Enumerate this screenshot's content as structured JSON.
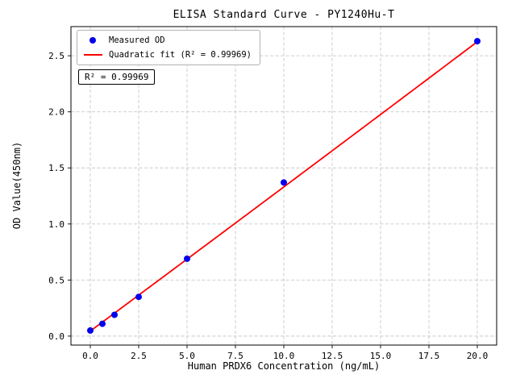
{
  "chart_data": {
    "type": "scatter",
    "title": "ELISA Standard Curve - PY1240Hu-T",
    "xlabel": "Human PRDX6 Concentration (ng/mL)",
    "ylabel": "OD Value(450nm)",
    "xlim": [
      -1.0,
      21.0
    ],
    "ylim": [
      -0.08,
      2.76
    ],
    "grid": true,
    "x_ticks": [
      {
        "value": 0,
        "label": "0.0"
      },
      {
        "value": 2.5,
        "label": "2.5"
      },
      {
        "value": 5,
        "label": "5.0"
      },
      {
        "value": 7.5,
        "label": "7.5"
      },
      {
        "value": 10,
        "label": "10.0"
      },
      {
        "value": 12.5,
        "label": "12.5"
      },
      {
        "value": 15,
        "label": "15.0"
      },
      {
        "value": 17.5,
        "label": "17.5"
      },
      {
        "value": 20,
        "label": "20.0"
      }
    ],
    "y_ticks": [
      {
        "value": 0.0,
        "label": "0.0"
      },
      {
        "value": 0.5,
        "label": "0.5"
      },
      {
        "value": 1.0,
        "label": "1.0"
      },
      {
        "value": 1.5,
        "label": "1.5"
      },
      {
        "value": 2.0,
        "label": "2.0"
      },
      {
        "value": 2.5,
        "label": "2.5"
      }
    ],
    "series": [
      {
        "name": "Measured OD",
        "type": "scatter",
        "color": "#0000ee",
        "points": [
          {
            "x": 0,
            "y": 0.05
          },
          {
            "x": 0.625,
            "y": 0.11
          },
          {
            "x": 1.25,
            "y": 0.19
          },
          {
            "x": 2.5,
            "y": 0.35
          },
          {
            "x": 5,
            "y": 0.69
          },
          {
            "x": 10,
            "y": 1.37
          },
          {
            "x": 20,
            "y": 2.63
          }
        ]
      },
      {
        "name": "Quadratic fit",
        "type": "line",
        "color": "#ff0000",
        "r_squared": 0.99969,
        "fit_coefficients": [
          0.045,
          0.128,
          5e-05
        ],
        "x_range": [
          0,
          20
        ]
      }
    ],
    "legend": {
      "position": "upper-left",
      "items": [
        {
          "label": "Measured OD",
          "marker": "circle",
          "color": "#0000ee"
        },
        {
          "label": "Quadratic fit (R² = 0.99969)",
          "marker": "line",
          "color": "#ff0000"
        }
      ]
    },
    "annotation": "R² = 0.99969",
    "colors": {
      "point": "#0000ee",
      "fit_line": "#ff0000",
      "grid": "#c8c8c8",
      "frame": "#000000",
      "background": "#ffffff"
    }
  }
}
